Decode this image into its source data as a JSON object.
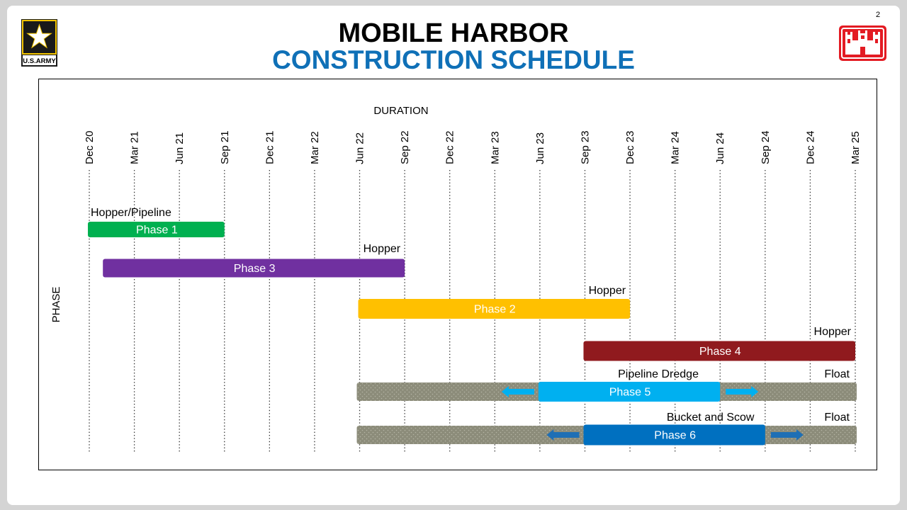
{
  "page": {
    "number": "2"
  },
  "header": {
    "title_line1": "MOBILE HARBOR",
    "title_line2": "CONSTRUCTION SCHEDULE"
  },
  "logos": {
    "left": {
      "icon": "us-army-star-logo",
      "text": "U.S.ARMY"
    },
    "right": {
      "icon": "usace-castle-logo"
    }
  },
  "colors": {
    "title_blue": "#0f70b7",
    "phase1": "#00b050",
    "phase3": "#7030a0",
    "phase2": "#ffc000",
    "phase4": "#901a1e",
    "phase5": "#00b0f0",
    "phase6": "#0070c0",
    "float": "#8c8c7a",
    "arrow5": "#00b0f0",
    "arrow6": "#1f6fb5"
  },
  "chart_data": {
    "type": "gantt",
    "title": "DURATION",
    "ylabel": "PHASE",
    "x_ticks": [
      "Dec 20",
      "Mar 21",
      "Jun 21",
      "Sep 21",
      "Dec 21",
      "Mar 22",
      "Jun 22",
      "Sep 22",
      "Dec 22",
      "Mar 23",
      "Jun 23",
      "Sep 23",
      "Dec 23",
      "Mar 24",
      "Jun 24",
      "Sep 24",
      "Dec 24",
      "Mar 25"
    ],
    "grid": "vertical dotted",
    "tasks": [
      {
        "name": "Phase 1",
        "start": "Dec 20",
        "end": "Sep 21",
        "label": "Hopper/Pipeline",
        "label_align": "start",
        "color": "#00b050",
        "text_color": "#ffffff"
      },
      {
        "name": "Phase 3",
        "start": "Jan 21",
        "end": "Sep 22",
        "label": "Hopper",
        "label_align": "end",
        "color": "#7030a0",
        "text_color": "#ffffff"
      },
      {
        "name": "Phase 2",
        "start": "Jun 22",
        "end": "Dec 23",
        "label": "Hopper",
        "label_align": "end",
        "color": "#ffc000",
        "text_color": "#ffffff"
      },
      {
        "name": "Phase 4",
        "start": "Sep 23",
        "end": "Mar 25",
        "label": "Hopper",
        "label_align": "end",
        "color": "#901a1e",
        "text_color": "#ffffff"
      },
      {
        "name": "Phase 5",
        "start": "Jun 23",
        "end": "Jun 24",
        "label": "Pipeline Dredge",
        "label_align": "center",
        "float_start": "Jun 22",
        "float_end": "Mar 25",
        "float_label": "Float",
        "color": "#00b0f0",
        "text_color": "#ffffff",
        "arrow_color": "#00b0f0"
      },
      {
        "name": "Phase 6",
        "start": "Sep 23",
        "end": "Sep 24",
        "label": "Bucket and Scow",
        "label_align": "center",
        "float_start": "Jun 22",
        "float_end": "Mar 25",
        "float_label": "Float",
        "color": "#0070c0",
        "text_color": "#ffffff",
        "arrow_color": "#1f6fb5"
      }
    ]
  }
}
